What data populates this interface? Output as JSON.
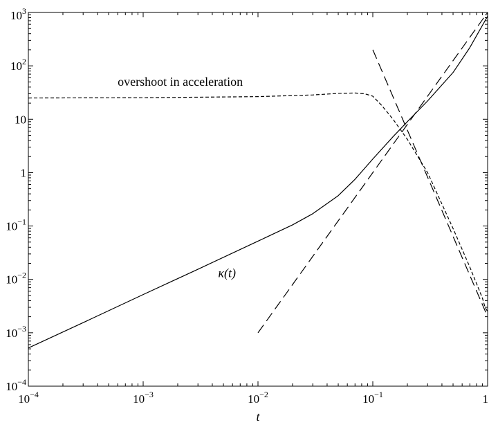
{
  "chart_data": {
    "type": "line",
    "title": "",
    "xlabel": "t",
    "ylabel": "",
    "xscale": "log",
    "yscale": "log",
    "xlim": [
      0.0001,
      1
    ],
    "ylim": [
      0.0001,
      1000
    ],
    "grid": false,
    "x_ticks": [
      {
        "value": 0.0001,
        "base": "10",
        "exp": "−4"
      },
      {
        "value": 0.001,
        "base": "10",
        "exp": "−3"
      },
      {
        "value": 0.01,
        "base": "10",
        "exp": "−2"
      },
      {
        "value": 0.1,
        "base": "10",
        "exp": "−1"
      },
      {
        "value": 1,
        "base": "1",
        "exp": ""
      }
    ],
    "y_ticks": [
      {
        "value": 0.0001,
        "base": "10",
        "exp": "−4"
      },
      {
        "value": 0.001,
        "base": "10",
        "exp": "−3"
      },
      {
        "value": 0.01,
        "base": "10",
        "exp": "−2"
      },
      {
        "value": 0.1,
        "base": "10",
        "exp": "−1"
      },
      {
        "value": 1,
        "base": "1",
        "exp": ""
      },
      {
        "value": 10,
        "base": "10",
        "exp": ""
      },
      {
        "value": 100,
        "base": "10",
        "exp": "2"
      },
      {
        "value": 1000,
        "base": "10",
        "exp": "3"
      }
    ],
    "series": [
      {
        "label": "κ(t)",
        "style": "solid",
        "x": [
          0.0001,
          0.0003,
          0.001,
          0.003,
          0.01,
          0.02,
          0.03,
          0.05,
          0.07,
          0.1,
          0.15,
          0.2,
          0.3,
          0.5,
          0.7,
          1.0
        ],
        "y": [
          0.00052,
          0.00155,
          0.0052,
          0.0155,
          0.052,
          0.105,
          0.17,
          0.37,
          0.75,
          1.8,
          4.7,
          9.0,
          22,
          75,
          220,
          850
        ]
      },
      {
        "label": "overshoot in acceleration",
        "style": "dashed",
        "x": [
          0.0001,
          0.001,
          0.01,
          0.03,
          0.05,
          0.07,
          0.085,
          0.1,
          0.12,
          0.15,
          0.2,
          0.3,
          0.5,
          0.7,
          0.9,
          0.95,
          1.0
        ],
        "y": [
          25,
          25.3,
          26.5,
          28.5,
          30.5,
          31,
          30,
          27,
          18,
          10,
          4.2,
          1.0,
          0.09,
          0.017,
          0.0045,
          0.003,
          0.0025
        ]
      },
      {
        "label": "",
        "style": "longdash",
        "x": [
          0.01,
          1.0
        ],
        "y": [
          0.001,
          1000
        ]
      },
      {
        "label": "",
        "style": "longdash",
        "x": [
          0.1,
          1.0
        ],
        "y": [
          200,
          0.002
        ]
      }
    ],
    "annotations": [
      {
        "text": "overshoot in acceleration",
        "x": 0.0006,
        "y": 42
      },
      {
        "text": "κ(t)",
        "x": 0.0045,
        "y": 0.011
      }
    ]
  }
}
